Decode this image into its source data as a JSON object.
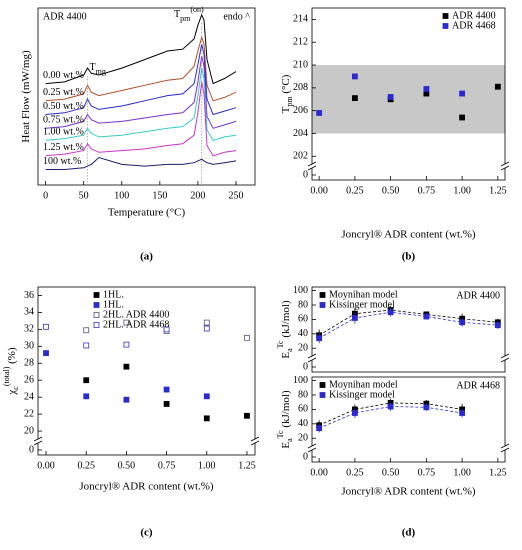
{
  "chart_data": [
    {
      "type": "line",
      "title": "ADR 4400",
      "note": "endo ^",
      "caption": "(a)",
      "xlabel": "Temperature (°C)",
      "ylabel": [
        {
          "text": "Heat Flow (mW/mg)"
        }
      ],
      "xlim": [
        -10,
        275
      ],
      "xticks": [
        0,
        50,
        100,
        150,
        200,
        250
      ],
      "ylim": [
        0,
        10.3
      ],
      "x": [
        0,
        25,
        50,
        55,
        60,
        70,
        100,
        130,
        160,
        180,
        195,
        200,
        205,
        208,
        212,
        220,
        235,
        250
      ],
      "series": [
        {
          "name": "0.00 wt.%",
          "color": "#000000",
          "values": [
            5.9,
            6.0,
            6.4,
            6.8,
            6.5,
            6.4,
            6.8,
            7.3,
            7.8,
            7.9,
            8.5,
            9.3,
            9.9,
            9.6,
            7.3,
            5.9,
            6.2,
            6.6
          ]
        },
        {
          "name": "0.25 wt.%",
          "color": "#b3502b",
          "values": [
            4.9,
            5.0,
            5.3,
            5.8,
            5.4,
            5.2,
            5.5,
            5.8,
            6.1,
            6.2,
            6.9,
            7.8,
            8.6,
            8.2,
            5.8,
            4.9,
            5.1,
            5.4
          ]
        },
        {
          "name": "0.50 wt.%",
          "color": "#2a2ad0",
          "values": [
            4.1,
            4.2,
            4.5,
            5.0,
            4.6,
            4.4,
            4.6,
            4.9,
            5.2,
            5.3,
            5.9,
            7.0,
            8.2,
            7.6,
            5.0,
            4.1,
            4.3,
            4.5
          ]
        },
        {
          "name": "0.75 wt.%",
          "color": "#7d2fd6",
          "values": [
            3.3,
            3.4,
            3.7,
            4.1,
            3.8,
            3.6,
            3.7,
            3.9,
            4.1,
            4.2,
            4.8,
            6.0,
            7.5,
            6.9,
            4.0,
            3.3,
            3.5,
            3.7
          ]
        },
        {
          "name": "1.00 wt.%",
          "color": "#33cccc",
          "values": [
            2.6,
            2.7,
            2.9,
            3.3,
            3.0,
            2.8,
            2.9,
            3.1,
            3.3,
            3.4,
            3.9,
            5.2,
            6.8,
            6.2,
            3.2,
            2.6,
            2.8,
            2.9
          ]
        },
        {
          "name": "1.25 wt.%",
          "color": "#cc33cc",
          "values": [
            1.7,
            1.8,
            2.0,
            2.4,
            2.1,
            1.9,
            2.0,
            2.1,
            2.3,
            2.4,
            2.9,
            4.2,
            6.0,
            5.3,
            2.3,
            1.7,
            1.9,
            2.0
          ]
        },
        {
          "name": "100 wt.%",
          "color": "#1c1c6e",
          "values": [
            0.9,
            0.9,
            1.0,
            1.1,
            1.2,
            1.6,
            1.2,
            1.1,
            1.2,
            1.2,
            1.3,
            1.4,
            1.5,
            1.4,
            1.3,
            1.2,
            1.3,
            1.4
          ]
        }
      ],
      "annotations": [
        {
          "text": [
            {
              "text": "T"
            },
            {
              "text": "mg",
              "shift": "sub"
            }
          ],
          "x": 55
        },
        {
          "text": [
            {
              "text": "T"
            },
            {
              "text": "pm",
              "shift": "sub"
            },
            {
              "text": "(on)",
              "shift": "super"
            }
          ],
          "x": 205
        }
      ]
    },
    {
      "type": "scatter",
      "caption": "(b)",
      "xlabel": "Joncryl® ADR content (wt.%)",
      "ylabel": [
        {
          "text": "T"
        },
        {
          "text": "pm",
          "shift": "sub"
        },
        {
          "text": " (°C)"
        }
      ],
      "xlim": [
        -0.05,
        1.3
      ],
      "xticks": [
        {
          "value": 0,
          "label": "0.00"
        },
        {
          "value": 0.25,
          "label": "0.25"
        },
        {
          "value": 0.5,
          "label": "0.50"
        },
        {
          "value": 0.75,
          "label": "0.75"
        },
        {
          "value": 1,
          "label": "1.00"
        },
        {
          "value": 1.25,
          "label": "1.25"
        }
      ],
      "ylim": [
        -1,
        215
      ],
      "ybreak": [
        1,
        201.5
      ],
      "yticks": [
        0,
        202,
        204,
        206,
        208,
        210,
        212,
        214
      ],
      "band": [
        204,
        210
      ],
      "legend": "upper right",
      "series": [
        {
          "name": "ADR 4400",
          "color": "#000000",
          "x": [
            0.25,
            0.5,
            0.75,
            1,
            1.25
          ],
          "values": [
            207.1,
            207.0,
            207.5,
            205.4,
            208.1
          ]
        },
        {
          "name": "ADR 4468",
          "color": "#2a2ad0",
          "x": [
            0,
            0.25,
            0.5,
            0.75,
            1
          ],
          "values": [
            205.8,
            209.0,
            207.2,
            207.9,
            207.5
          ]
        }
      ]
    },
    {
      "type": "scatter",
      "caption": "(c)",
      "xlabel": "Joncryl® ADR content (wt.%)",
      "ylabel": [
        {
          "text": "χ"
        },
        {
          "text": "c",
          "shift": "sub"
        },
        {
          "text": "(total)",
          "shift": "super"
        },
        {
          "text": " (%)"
        }
      ],
      "xlim": [
        -0.05,
        1.3
      ],
      "xticks": [
        {
          "value": 0,
          "label": "0.00"
        },
        {
          "value": 0.25,
          "label": "0.25"
        },
        {
          "value": 0.5,
          "label": "0.50"
        },
        {
          "value": 0.75,
          "label": "0.75"
        },
        {
          "value": 1,
          "label": "1.00"
        },
        {
          "value": 1.25,
          "label": "1.25"
        }
      ],
      "ylim": [
        -1,
        37
      ],
      "ybreak": [
        1,
        19.3
      ],
      "yticks": [
        0,
        20,
        22,
        24,
        26,
        28,
        30,
        32,
        34,
        36
      ],
      "legend": "upper center",
      "series": [
        {
          "name": "1HL.",
          "color": "#000000",
          "open": false,
          "x": [
            0.25,
            0.5,
            0.75,
            1,
            1.25
          ],
          "values": [
            26.0,
            27.6,
            23.2,
            21.5,
            21.8
          ]
        },
        {
          "name": "1HL.",
          "color": "#2a2ad0",
          "open": false,
          "x": [
            0,
            0.25,
            0.5,
            0.75,
            1
          ],
          "values": [
            29.2,
            24.1,
            23.7,
            24.9,
            24.1
          ]
        },
        {
          "name": "2HL. ADR 4400",
          "color": "#555577",
          "open": true,
          "x": [
            0.25,
            0.5,
            0.75,
            1,
            1.25
          ],
          "values": [
            31.9,
            32.8,
            31.8,
            32.8,
            31.0
          ]
        },
        {
          "name": "2HL. ADR 4468",
          "color": "#3333cc",
          "open": true,
          "x": [
            0,
            0.25,
            0.5,
            0.75,
            1
          ],
          "values": [
            32.3,
            30.1,
            30.2,
            32.0,
            32.1
          ]
        }
      ]
    },
    {
      "type": "scatter",
      "title": "ADR 4400",
      "ylabel": [
        {
          "text": "E"
        },
        {
          "text": "a",
          "shift": "sub"
        },
        {
          "text": "Tc",
          "shift": "super"
        },
        {
          "text": " (kJ/mol)"
        }
      ],
      "xlim": [
        -0.05,
        1.3
      ],
      "ylim": [
        -2,
        105
      ],
      "ybreak": [
        2,
        12
      ],
      "yticks": [
        0,
        20,
        40,
        60,
        80,
        100
      ],
      "legend": "upper left",
      "fit": true,
      "series": [
        {
          "name": "Moynihan model",
          "color": "#000000",
          "x": [
            0,
            0.25,
            0.5,
            0.75,
            1,
            1.25
          ],
          "values": [
            38,
            68,
            73,
            67,
            61,
            56
          ],
          "errors": [
            8,
            8,
            6,
            4,
            7,
            5
          ]
        },
        {
          "name": "Kissinger model",
          "color": "#2a2ad0",
          "x": [
            0,
            0.25,
            0.5,
            0.75,
            1,
            1.25
          ],
          "values": [
            34,
            62,
            70,
            64,
            56,
            52
          ],
          "errors": [
            7,
            8,
            6,
            4,
            6,
            5
          ]
        }
      ]
    },
    {
      "type": "scatter",
      "title": "ADR 4468",
      "caption": "(d)",
      "xlabel": "Joncryl® ADR content (wt.%)",
      "ylabel": [
        {
          "text": "E"
        },
        {
          "text": "a",
          "shift": "sub"
        },
        {
          "text": "Tc",
          "shift": "super"
        },
        {
          "text": " (kJ/mol)"
        }
      ],
      "xlim": [
        -0.05,
        1.3
      ],
      "xticks": [
        {
          "value": 0,
          "label": "0.00"
        },
        {
          "value": 0.25,
          "label": "0.25"
        },
        {
          "value": 0.5,
          "label": "0.50"
        },
        {
          "value": 0.75,
          "label": "0.75"
        },
        {
          "value": 1,
          "label": "1.00"
        },
        {
          "value": 1.25,
          "label": "1.25"
        }
      ],
      "ylim": [
        -2,
        105
      ],
      "ybreak": [
        2,
        12
      ],
      "yticks": [
        0,
        20,
        40,
        60,
        80,
        100
      ],
      "legend": "upper left",
      "fit": true,
      "series": [
        {
          "name": "Moynihan model",
          "color": "#000000",
          "x": [
            0,
            0.25,
            0.5,
            0.75,
            1
          ],
          "values": [
            38,
            60,
            69,
            68,
            60
          ],
          "errors": [
            7,
            7,
            6,
            5,
            8
          ]
        },
        {
          "name": "Kissinger model",
          "color": "#2a2ad0",
          "x": [
            0,
            0.25,
            0.5,
            0.75,
            1
          ],
          "values": [
            34,
            55,
            64,
            63,
            55
          ],
          "errors": [
            6,
            7,
            6,
            5,
            6
          ]
        }
      ]
    }
  ]
}
